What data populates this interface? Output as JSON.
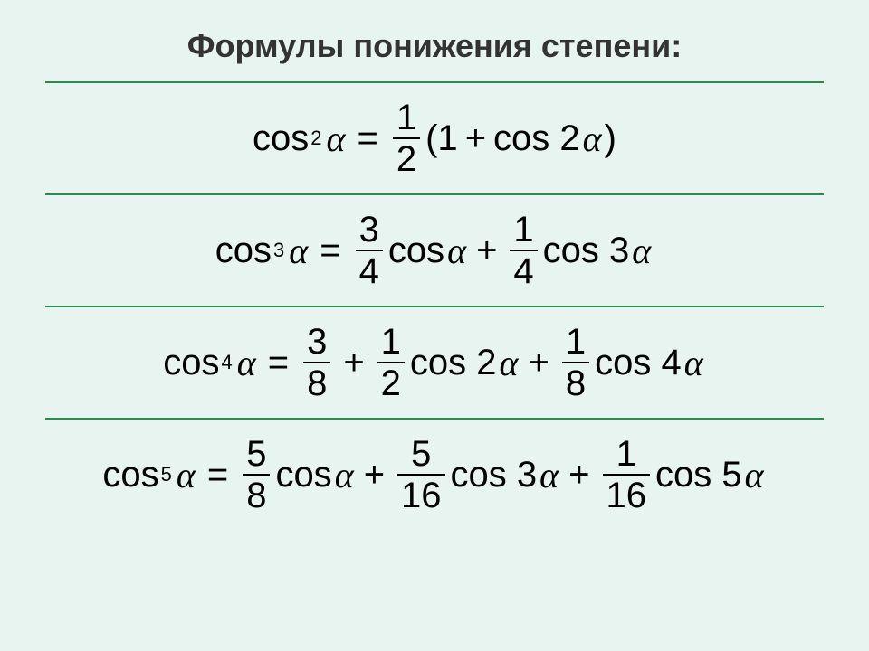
{
  "background_color": "#e8f4f0",
  "divider_color": "#2a8c4a",
  "text_color": "#333",
  "title": "Формулы понижения степени:",
  "alpha": "α",
  "cos": "cos",
  "formulas": {
    "f2": {
      "power": "2",
      "paren_open": "(1",
      "paren_close": ")",
      "frac": {
        "num": "1",
        "den": "2"
      },
      "mult": "2"
    },
    "f3": {
      "power": "3",
      "t1": {
        "num": "3",
        "den": "4"
      },
      "t2": {
        "num": "1",
        "den": "4"
      },
      "mult2": "3"
    },
    "f4": {
      "power": "4",
      "t1": {
        "num": "3",
        "den": "8"
      },
      "t2": {
        "num": "1",
        "den": "2"
      },
      "mult2": "2",
      "t3": {
        "num": "1",
        "den": "8"
      },
      "mult3": "4"
    },
    "f5": {
      "power": "5",
      "t1": {
        "num": "5",
        "den": "8"
      },
      "t2": {
        "num": "5",
        "den": "16"
      },
      "mult2": "3",
      "t3": {
        "num": "1",
        "den": "16"
      },
      "mult3": "5"
    }
  }
}
